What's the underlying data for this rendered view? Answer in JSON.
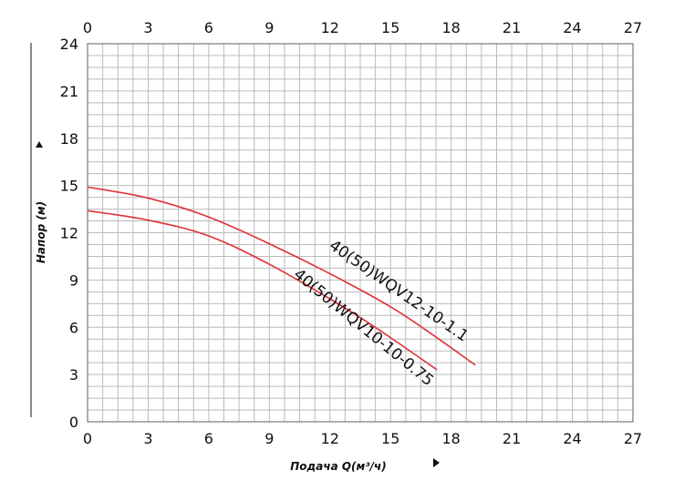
{
  "chart_data": {
    "type": "line",
    "xlabel": "Подача Q(м³/ч)",
    "ylabel": "Напор (м)",
    "xlim": [
      0,
      27
    ],
    "ylim": [
      0,
      24
    ],
    "x_ticks": [
      "0",
      "3",
      "6",
      "9",
      "12",
      "15",
      "18",
      "21",
      "24",
      "27"
    ],
    "y_ticks": [
      "0",
      "3",
      "6",
      "9",
      "12",
      "15",
      "18",
      "21",
      "24"
    ],
    "grid": true,
    "minor_grid_step": 0.75,
    "colors": {
      "curve": "#e0303a",
      "grid": "#bbbbbb",
      "axis": "#111111"
    },
    "series": [
      {
        "name": "40(50)WQV12-10-1.1",
        "x": [
          0,
          3,
          6,
          9,
          12,
          15,
          17,
          19.2
        ],
        "y": [
          14.9,
          14.2,
          13.0,
          11.3,
          9.4,
          7.3,
          5.6,
          3.6
        ]
      },
      {
        "name": "40(50)WQV10-10-0.75",
        "x": [
          0,
          3,
          6,
          9,
          12,
          14,
          15.5,
          17.3
        ],
        "y": [
          13.4,
          12.8,
          11.8,
          10.0,
          7.8,
          6.2,
          4.9,
          3.3
        ]
      }
    ]
  }
}
